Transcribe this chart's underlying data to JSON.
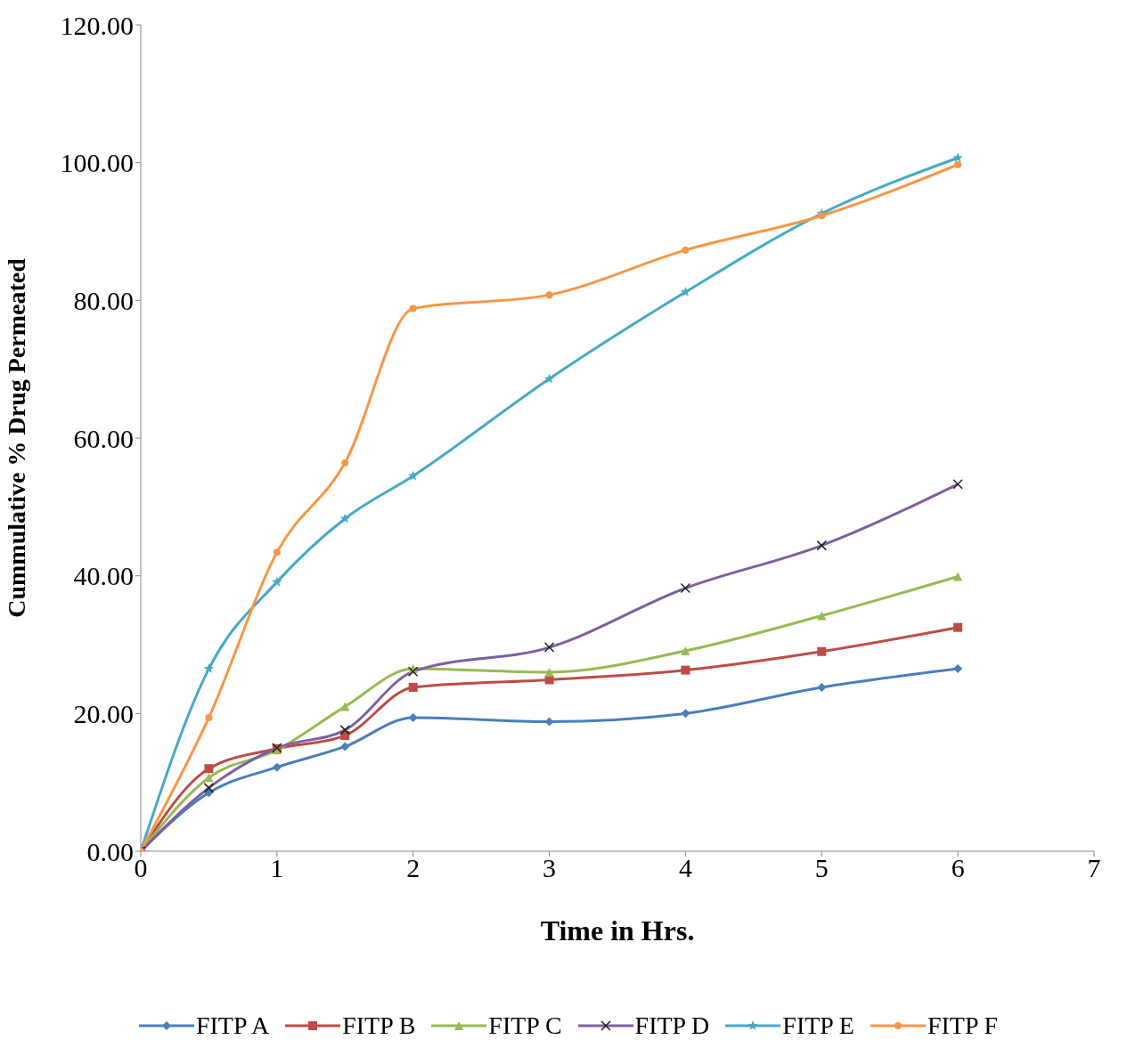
{
  "chart_data": {
    "type": "line",
    "xlabel": "Time in Hrs.",
    "ylabel": "Cummulative % Drug Permeated",
    "x": [
      0,
      0.5,
      1,
      1.5,
      2,
      3,
      4,
      5,
      6
    ],
    "xlim": [
      0,
      7
    ],
    "xticks": [
      0,
      1,
      2,
      3,
      4,
      5,
      6,
      7
    ],
    "ylim": [
      0,
      120
    ],
    "yticks": [
      {
        "value": 0,
        "label": "0.00"
      },
      {
        "value": 20,
        "label": "20.00"
      },
      {
        "value": 40,
        "label": "40.00"
      },
      {
        "value": 60,
        "label": "60.00"
      },
      {
        "value": 80,
        "label": "80.00"
      },
      {
        "value": 100,
        "label": "100.00"
      },
      {
        "value": 120,
        "label": "120.00"
      }
    ],
    "grid": false,
    "legend": "bottom",
    "line_style": "solid",
    "series": [
      {
        "name": "FITP A",
        "color": "#4a7ebb",
        "marker": "diamond",
        "values": [
          0,
          8.5,
          12.2,
          15.2,
          19.4,
          18.8,
          20.0,
          23.8,
          26.5
        ]
      },
      {
        "name": "FITP B",
        "color": "#be4b48",
        "marker": "square",
        "values": [
          0,
          12.0,
          14.9,
          16.8,
          23.8,
          24.9,
          26.3,
          29.0,
          32.5
        ]
      },
      {
        "name": "FITP C",
        "color": "#98b954",
        "marker": "triangle",
        "values": [
          0,
          10.7,
          14.7,
          21.0,
          26.5,
          26.0,
          29.1,
          34.2,
          39.9
        ]
      },
      {
        "name": "FITP D",
        "color": "#7d60a0",
        "marker": "cross",
        "values": [
          0,
          9.2,
          15.0,
          17.6,
          26.1,
          29.6,
          38.2,
          44.4,
          53.3
        ]
      },
      {
        "name": "FITP E",
        "color": "#46aac5",
        "marker": "star",
        "values": [
          0,
          26.5,
          39.1,
          48.3,
          54.5,
          68.6,
          81.2,
          92.6,
          100.7
        ]
      },
      {
        "name": "FITP F",
        "color": "#f79646",
        "marker": "circle",
        "values": [
          0,
          19.4,
          43.4,
          56.4,
          78.8,
          80.8,
          87.3,
          92.3,
          99.7
        ]
      }
    ]
  }
}
